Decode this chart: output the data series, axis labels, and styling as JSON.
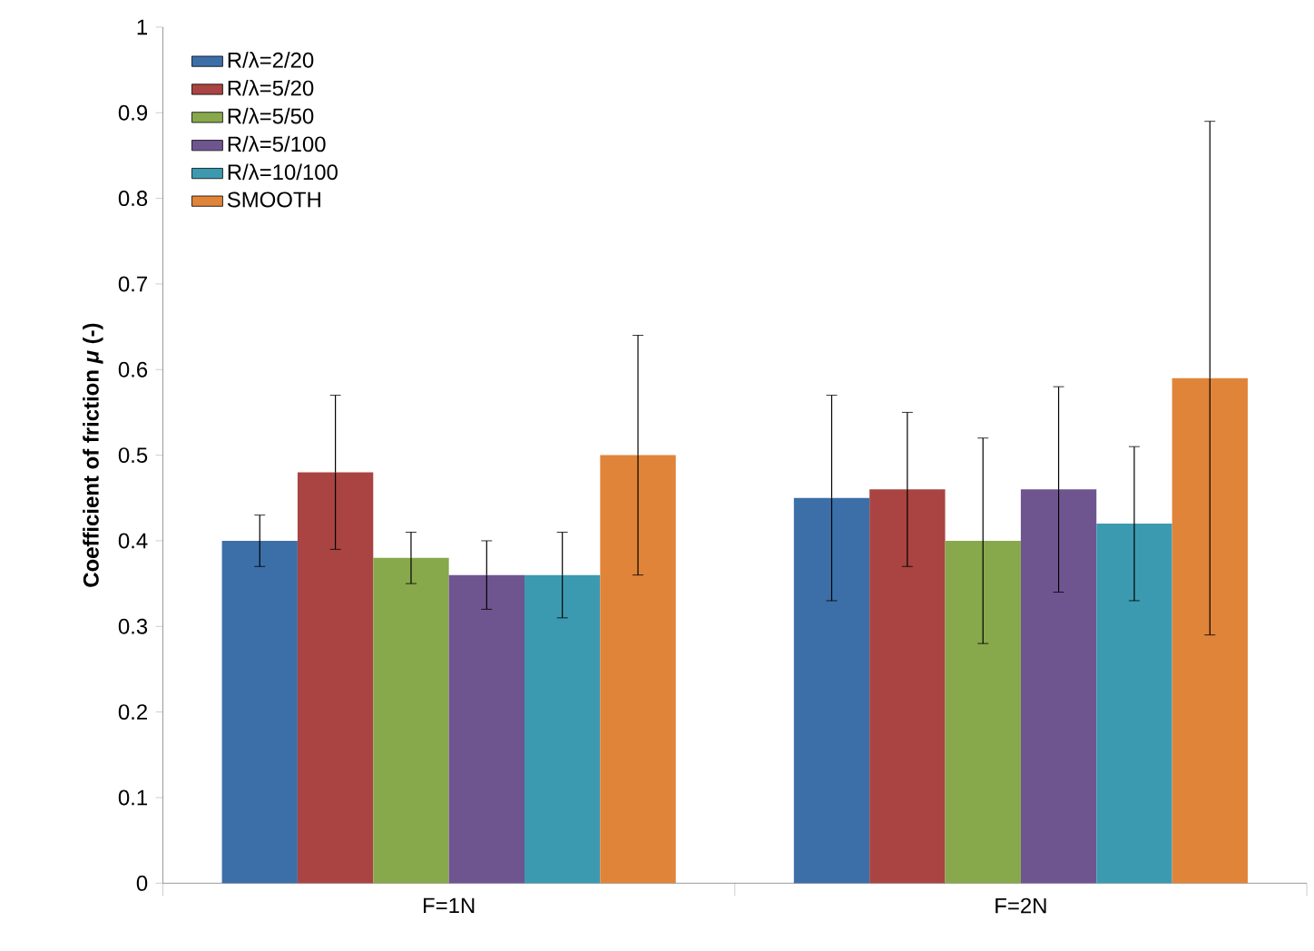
{
  "chart_data": {
    "type": "bar",
    "ylabel": "Coefficient of friction *μ* (-)",
    "categories": [
      "F=1N",
      "F=2N"
    ],
    "series": [
      {
        "name": "R/λ=2/20",
        "color": "#3c6fa8",
        "values": [
          0.4,
          0.45
        ],
        "errors": [
          0.03,
          0.12
        ]
      },
      {
        "name": "R/λ=5/20",
        "color": "#a94442",
        "values": [
          0.48,
          0.46
        ],
        "errors": [
          0.09,
          0.09
        ]
      },
      {
        "name": "R/λ=5/50",
        "color": "#88a84c",
        "values": [
          0.38,
          0.4
        ],
        "errors": [
          0.03,
          0.12
        ]
      },
      {
        "name": "R/λ=5/100",
        "color": "#6f5590",
        "values": [
          0.36,
          0.46
        ],
        "errors": [
          0.04,
          0.12
        ]
      },
      {
        "name": "R/λ=10/100",
        "color": "#3c9ab0",
        "values": [
          0.36,
          0.42
        ],
        "errors": [
          0.05,
          0.09
        ]
      },
      {
        "name": "SMOOTH",
        "color": "#e0843a",
        "values": [
          0.5,
          0.59
        ],
        "errors": [
          0.14,
          0.3
        ]
      }
    ],
    "ylim": [
      0,
      1
    ],
    "yticks": [
      0,
      0.1,
      0.2,
      0.3,
      0.4,
      0.5,
      0.6,
      0.7,
      0.8,
      0.9,
      1
    ],
    "legend": "top left"
  }
}
